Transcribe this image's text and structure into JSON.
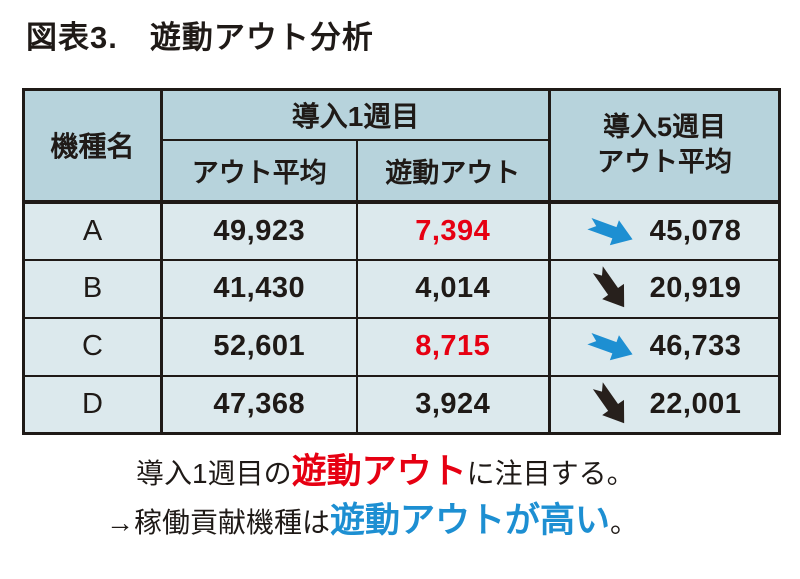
{
  "title": "図表3.　遊動アウト分析",
  "colors": {
    "header_bg": "#b7d3dc",
    "row_bg": "#dce9ed",
    "border": "#1f1a17",
    "red": "#e60012",
    "blue": "#1d8fd2",
    "arrow_black": "#27201c"
  },
  "table": {
    "header": {
      "machine": "機種名",
      "week1_group": "導入1週目",
      "out_average": "アウト平均",
      "floating_out": "遊動アウト",
      "week5_line1": "導入5週目",
      "week5_line2": "アウト平均"
    },
    "rows": [
      {
        "model": "A",
        "out_avg": "49,923",
        "floating_out": "7,394",
        "floating_red": true,
        "week5_avg": "45,078",
        "trend": "slight-down-blue"
      },
      {
        "model": "B",
        "out_avg": "41,430",
        "floating_out": "4,014",
        "floating_red": false,
        "week5_avg": "20,919",
        "trend": "steep-down-black"
      },
      {
        "model": "C",
        "out_avg": "52,601",
        "floating_out": "8,715",
        "floating_red": true,
        "week5_avg": "46,733",
        "trend": "slight-down-blue"
      },
      {
        "model": "D",
        "out_avg": "47,368",
        "floating_out": "3,924",
        "floating_red": false,
        "week5_avg": "22,001",
        "trend": "steep-down-black"
      }
    ]
  },
  "notes": {
    "line1_prefix": "導入1週目の",
    "line1_highlight": "遊動アウト",
    "line1_suffix": "に注目する。",
    "line2_prefix": "→稼働貢献機種は",
    "line2_highlight": "遊動アウトが高い",
    "line2_suffix": "。"
  },
  "chart_data": {
    "type": "table",
    "title": "図表3.　遊動アウト分析",
    "columns": [
      "機種名",
      "導入1週目 アウト平均",
      "導入1週目 遊動アウト",
      "導入5週目 アウト平均"
    ],
    "rows": [
      [
        "A",
        49923,
        7394,
        45078
      ],
      [
        "B",
        41430,
        4014,
        20919
      ],
      [
        "C",
        52601,
        8715,
        46733
      ],
      [
        "D",
        47368,
        3924,
        22001
      ]
    ],
    "highlights": {
      "red_floating_out_models": [
        "A",
        "C"
      ],
      "trend_arrows": {
        "A": "slight-down-blue",
        "B": "steep-down-black",
        "C": "slight-down-blue",
        "D": "steep-down-black"
      }
    },
    "annotations": [
      "導入1週目の遊動アウトに注目する。",
      "→稼働貢献機種は遊動アウトが高い。"
    ]
  }
}
